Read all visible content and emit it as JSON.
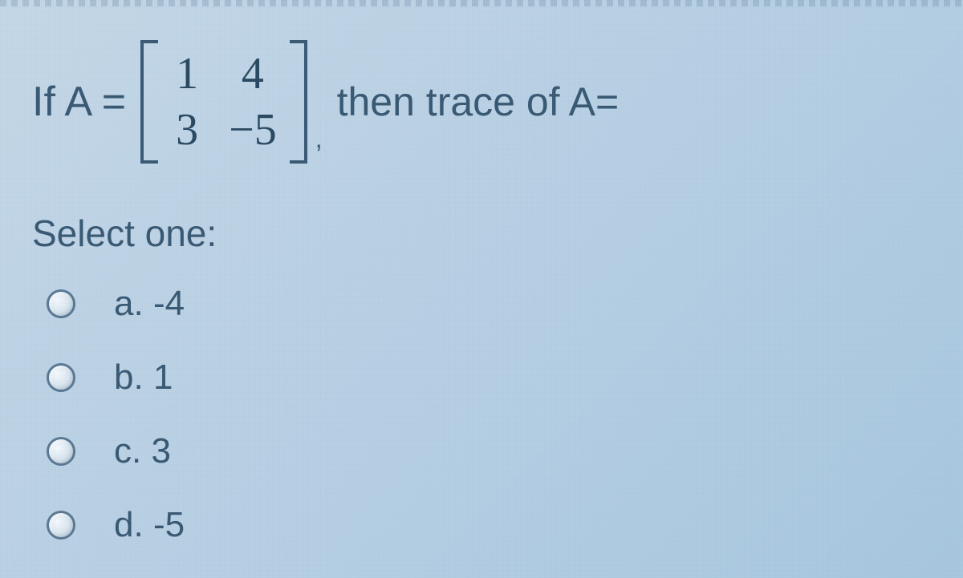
{
  "question": {
    "prefix": "If A =",
    "matrix": {
      "rows": [
        [
          "1",
          "4"
        ],
        [
          "3",
          "−5"
        ]
      ],
      "bracket_color": "#3a5a75",
      "cell_color": "#2b4a63",
      "cell_fontsize": 56
    },
    "comma": ",",
    "suffix": "then trace of A=",
    "text_color": "#3a5a75",
    "fontsize": 50
  },
  "prompt": "Select one:",
  "options": [
    {
      "letter": "a.",
      "value": "-4"
    },
    {
      "letter": "b.",
      "value": "1"
    },
    {
      "letter": "c.",
      "value": "3"
    },
    {
      "letter": "d.",
      "value": "-5"
    }
  ],
  "styling": {
    "background_gradient_start": "#c5d8e8",
    "background_gradient_end": "#a8c8e0",
    "radio_border_color": "#5a7a95",
    "option_fontsize": 44,
    "prompt_fontsize": 46
  }
}
